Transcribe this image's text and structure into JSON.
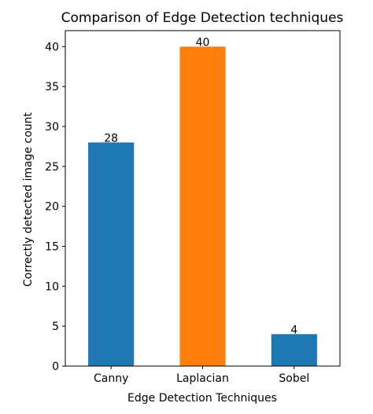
{
  "chart_data": {
    "type": "bar",
    "title": "Comparison of Edge Detection techniques",
    "xlabel": "Edge Detection Techniques",
    "ylabel": "Correctly detected image count",
    "categories": [
      "Canny",
      "Laplacian",
      "Sobel"
    ],
    "values": [
      28,
      40,
      4
    ],
    "data_labels": [
      "28",
      "40",
      "4"
    ],
    "bar_colors": [
      "#1f77b4",
      "#ff7f0e",
      "#1f77b4"
    ],
    "ylim": [
      0,
      42
    ],
    "yticks": [
      0,
      5,
      10,
      15,
      20,
      25,
      30,
      35,
      40
    ],
    "ytick_labels": [
      "0",
      "5",
      "10",
      "15",
      "20",
      "25",
      "30",
      "35",
      "40"
    ],
    "grid": false,
    "legend": "none"
  }
}
